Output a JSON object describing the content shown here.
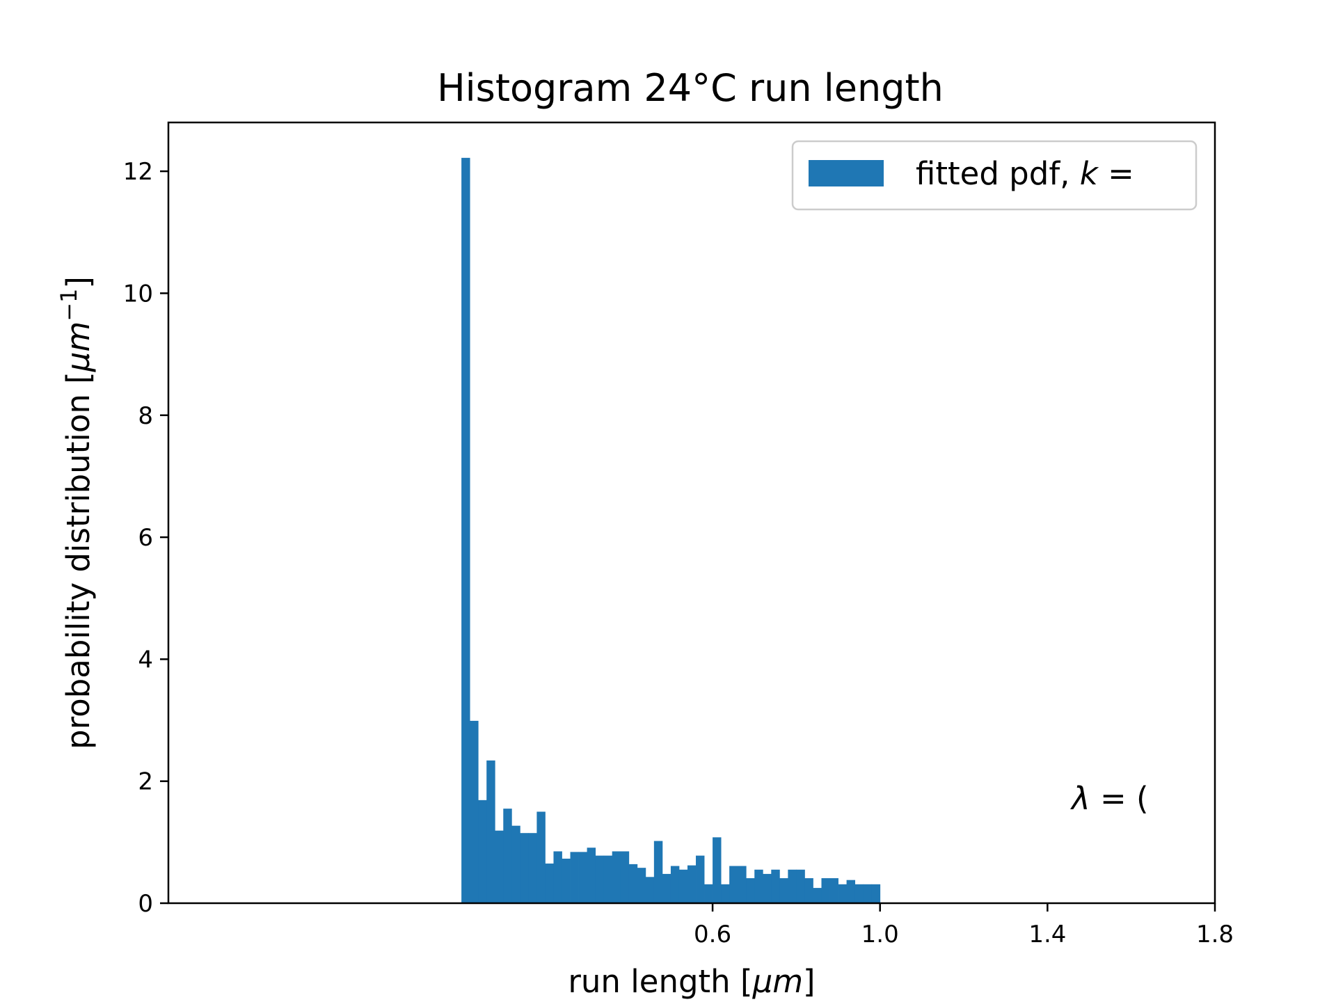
{
  "chart_data": {
    "type": "bar",
    "title": "Histogram 24°C run length",
    "xlabel": "run length [μm]",
    "ylabel": "probability distribution [μm⁻¹]",
    "xlim": [
      -0.7,
      1.8
    ],
    "ylim": [
      0,
      12.8
    ],
    "xticks": [
      0.6,
      1.0,
      1.4,
      1.8
    ],
    "yticks": [
      0,
      2,
      4,
      6,
      8,
      10,
      12
    ],
    "bin_width": 0.02,
    "x_start": 0.0,
    "values": [
      12.22,
      2.99,
      1.69,
      2.34,
      1.19,
      1.55,
      1.27,
      1.15,
      1.15,
      1.5,
      0.65,
      0.85,
      0.73,
      0.84,
      0.84,
      0.91,
      0.78,
      0.78,
      0.85,
      0.85,
      0.64,
      0.58,
      0.43,
      1.02,
      0.48,
      0.61,
      0.55,
      0.62,
      0.78,
      0.31,
      1.08,
      0.31,
      0.61,
      0.61,
      0.41,
      0.55,
      0.48,
      0.55,
      0.41,
      0.55,
      0.55,
      0.41,
      0.25,
      0.41,
      0.41,
      0.31,
      0.38,
      0.31,
      0.31,
      0.31
    ],
    "series_color": "#1f77b4",
    "legend": {
      "label": "fitted pdf, k =",
      "position": "upper right"
    },
    "annotation": "λ = ("
  }
}
